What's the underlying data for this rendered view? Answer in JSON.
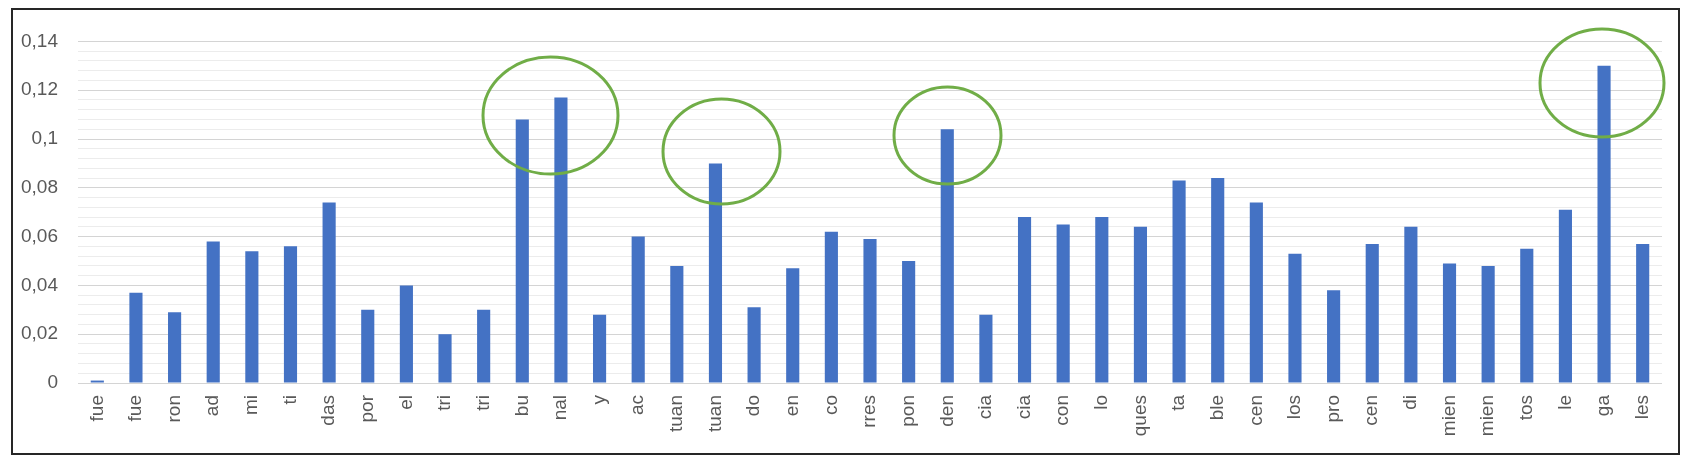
{
  "chart_data": {
    "type": "bar",
    "categories": [
      "fue",
      "fue",
      "ron",
      "ad",
      "mi",
      "ti",
      "das",
      "por",
      "el",
      "tri",
      "tri",
      "bu",
      "nal",
      "y",
      "ac",
      "tuan",
      "tuan",
      "do",
      "en",
      "co",
      "rres",
      "pon",
      "den",
      "cia",
      "cia",
      "con",
      "lo",
      "ques",
      "ta",
      "ble",
      "cen",
      "los",
      "pro",
      "cen",
      "di",
      "mien",
      "mien",
      "tos",
      "le",
      "ga",
      "les"
    ],
    "values": [
      0.001,
      0.037,
      0.029,
      0.058,
      0.054,
      0.056,
      0.074,
      0.03,
      0.04,
      0.02,
      0.03,
      0.108,
      0.117,
      0.028,
      0.06,
      0.048,
      0.09,
      0.031,
      0.047,
      0.062,
      0.059,
      0.05,
      0.104,
      0.028,
      0.068,
      0.065,
      0.068,
      0.064,
      0.083,
      0.084,
      0.074,
      0.053,
      0.038,
      0.057,
      0.064,
      0.049,
      0.048,
      0.055,
      0.071,
      0.13,
      0.057
    ],
    "color": "#4472c4",
    "ylim": [
      0,
      0.14
    ],
    "yticks": [
      0,
      {
        "value": 0.004,
        "label": null
      },
      {
        "value": 0.008,
        "label": null
      },
      {
        "value": 0.012,
        "label": null
      },
      {
        "value": 0.016,
        "label": null
      },
      {
        "value": 0.02,
        "label": "0,02"
      },
      {
        "value": 0.024,
        "label": null
      },
      {
        "value": 0.028,
        "label": null
      },
      {
        "value": 0.032,
        "label": null
      },
      {
        "value": 0.036,
        "label": null
      },
      {
        "value": 0.04,
        "label": "0,04"
      },
      {
        "value": 0.044,
        "label": null
      },
      {
        "value": 0.048,
        "label": null
      },
      {
        "value": 0.052,
        "label": null
      },
      {
        "value": 0.056,
        "label": null
      },
      {
        "value": 0.06,
        "label": "0,06"
      },
      {
        "value": 0.064,
        "label": null
      },
      {
        "value": 0.068,
        "label": null
      },
      {
        "value": 0.072,
        "label": null
      },
      {
        "value": 0.076,
        "label": null
      },
      {
        "value": 0.08,
        "label": "0,08"
      },
      {
        "value": 0.084,
        "label": null
      },
      {
        "value": 0.088,
        "label": null
      },
      {
        "value": 0.092,
        "label": null
      },
      {
        "value": 0.096,
        "label": null
      },
      {
        "value": 0.1,
        "label": "0,1"
      },
      {
        "value": 0.104,
        "label": null
      },
      {
        "value": 0.108,
        "label": null
      },
      {
        "value": 0.112,
        "label": null
      },
      {
        "value": 0.116,
        "label": null
      },
      {
        "value": 0.12,
        "label": "0,12"
      },
      {
        "value": 0.124,
        "label": null
      },
      {
        "value": 0.128,
        "label": null
      },
      {
        "value": 0.132,
        "label": null
      },
      {
        "value": 0.136,
        "label": null
      },
      {
        "value": 0.14,
        "label": "0,14"
      }
    ],
    "grid": "y"
  }
}
